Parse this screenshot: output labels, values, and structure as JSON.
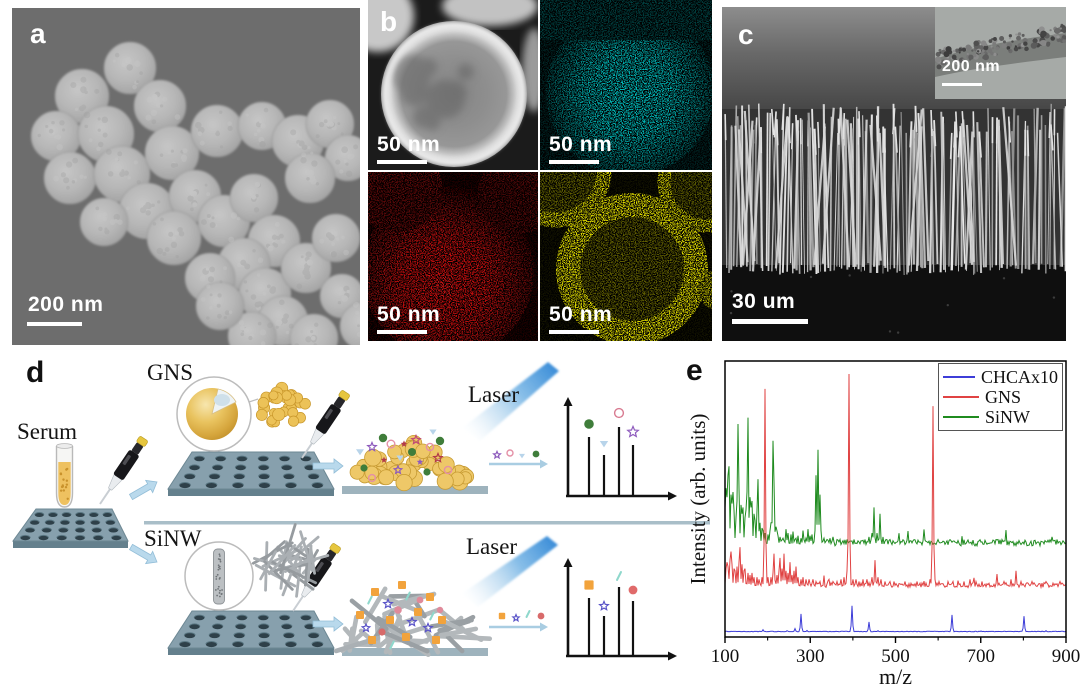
{
  "panels": {
    "a": {
      "label": "a",
      "scalebar_text": "200 nm"
    },
    "b": {
      "label": "b",
      "quadrants": [
        {
          "name": "stem-dark-field-image",
          "scalebar_text": "50 nm"
        },
        {
          "name": "elemental-map-cyan",
          "scalebar_text": "50 nm",
          "color": "#00bfbf"
        },
        {
          "name": "elemental-map-red",
          "scalebar_text": "50 nm",
          "color": "#d01212"
        },
        {
          "name": "elemental-map-yellow",
          "scalebar_text": "50 nm",
          "color": "#dcd800"
        }
      ]
    },
    "c": {
      "label": "c",
      "scalebar_text": "30 um",
      "inset": {
        "scalebar_text": "200 nm"
      }
    },
    "d": {
      "label": "d",
      "serum_label": "Serum",
      "gns_label": "GNS",
      "sinw_label": "SiNW",
      "laser_top_label": "Laser",
      "laser_bottom_label": "Laser"
    },
    "e": {
      "label": "e"
    }
  },
  "chart_data": {
    "type": "line",
    "title": "",
    "xlabel": "m/z",
    "ylabel": "Intensity (arb. units)",
    "xlim": [
      100,
      900
    ],
    "xticks_major": [
      100,
      300,
      500,
      700,
      900
    ],
    "xticks_minor": [
      200,
      400,
      600,
      800
    ],
    "grid": false,
    "legend_position": "top-right",
    "legend": [
      {
        "label": "CHCAx10",
        "color": "#3d3dd8"
      },
      {
        "label": "GNS",
        "color": "#e04343"
      },
      {
        "label": "SiNW",
        "color": "#1f8b1f"
      }
    ],
    "series": [
      {
        "name": "SiNW",
        "color": "#1f8b1f",
        "baseline_frac": 0.67,
        "amp_frac": 0.465,
        "noise_frac": 0.05,
        "spike_frac": 0.11,
        "seed": 11,
        "peaks": [
          [
            101,
            0.3
          ],
          [
            103,
            0.45
          ],
          [
            105,
            0.38
          ],
          [
            107,
            0.55
          ],
          [
            110,
            0.62
          ],
          [
            113,
            0.4
          ],
          [
            116,
            0.33
          ],
          [
            119,
            0.42
          ],
          [
            122,
            0.28
          ],
          [
            125,
            0.22
          ],
          [
            128,
            0.35
          ],
          [
            131,
            0.95
          ],
          [
            134,
            0.45
          ],
          [
            137,
            0.32
          ],
          [
            140,
            0.25
          ],
          [
            143,
            0.3
          ],
          [
            146,
            0.22
          ],
          [
            149,
            0.28
          ],
          [
            152,
            0.42
          ],
          [
            155,
            1.0
          ],
          [
            158,
            0.38
          ],
          [
            161,
            0.3
          ],
          [
            164,
            0.35
          ],
          [
            167,
            0.25
          ],
          [
            170,
            0.2
          ],
          [
            174,
            0.28
          ],
          [
            178,
            0.52
          ],
          [
            182,
            0.18
          ],
          [
            186,
            0.14
          ],
          [
            190,
            0.12
          ],
          [
            195,
            0.1
          ],
          [
            200,
            0.09
          ],
          [
            205,
            0.12
          ],
          [
            209,
            0.18
          ],
          [
            213,
            0.82
          ],
          [
            216,
            0.5
          ],
          [
            219,
            0.15
          ],
          [
            224,
            0.08
          ],
          [
            230,
            0.07
          ],
          [
            236,
            0.06
          ],
          [
            242,
            0.13
          ],
          [
            248,
            0.1
          ],
          [
            254,
            0.09
          ],
          [
            260,
            0.07
          ],
          [
            266,
            0.06
          ],
          [
            272,
            0.08
          ],
          [
            278,
            0.06
          ],
          [
            284,
            0.12
          ],
          [
            290,
            0.06
          ],
          [
            295,
            0.13
          ],
          [
            300,
            0.08
          ],
          [
            305,
            0.09
          ],
          [
            310,
            0.12
          ],
          [
            314,
            0.55
          ],
          [
            318,
            0.75
          ],
          [
            322,
            0.4
          ],
          [
            326,
            0.12
          ],
          [
            332,
            0.06
          ],
          [
            339,
            0.05
          ],
          [
            346,
            0.06
          ],
          [
            354,
            0.07
          ],
          [
            362,
            0.05
          ],
          [
            370,
            0.05
          ],
          [
            378,
            0.04
          ],
          [
            386,
            0.05
          ],
          [
            394,
            0.04
          ],
          [
            402,
            0.05
          ],
          [
            411,
            0.04
          ],
          [
            420,
            0.04
          ],
          [
            429,
            0.05
          ],
          [
            438,
            0.07
          ],
          [
            444,
            0.1
          ],
          [
            450,
            0.3
          ],
          [
            457,
            0.1
          ],
          [
            464,
            0.25
          ],
          [
            471,
            0.07
          ],
          [
            478,
            0.05
          ],
          [
            486,
            0.05
          ],
          [
            495,
            0.04
          ],
          [
            505,
            0.04
          ],
          [
            516,
            0.03
          ],
          [
            528,
            0.03
          ],
          [
            541,
            0.04
          ],
          [
            555,
            0.03
          ],
          [
            570,
            0.03
          ],
          [
            586,
            0.03
          ],
          [
            603,
            0.03
          ],
          [
            621,
            0.04
          ],
          [
            640,
            0.03
          ],
          [
            660,
            0.04
          ],
          [
            681,
            0.03
          ],
          [
            703,
            0.03
          ],
          [
            726,
            0.02
          ],
          [
            750,
            0.03
          ],
          [
            775,
            0.02
          ],
          [
            800,
            0.03
          ],
          [
            826,
            0.02
          ],
          [
            853,
            0.03
          ],
          [
            868,
            0.07
          ],
          [
            880,
            0.05
          ],
          [
            893,
            0.04
          ]
        ]
      },
      {
        "name": "GNS",
        "color": "#e04343",
        "baseline_frac": 0.822,
        "amp_frac": 0.775,
        "noise_frac": 0.025,
        "spike_frac": 0.05,
        "seed": 29,
        "peaks": [
          [
            102,
            0.09
          ],
          [
            105,
            0.12
          ],
          [
            108,
            0.1
          ],
          [
            111,
            0.13
          ],
          [
            114,
            0.17
          ],
          [
            117,
            0.11
          ],
          [
            120,
            0.09
          ],
          [
            124,
            0.08
          ],
          [
            128,
            0.1
          ],
          [
            132,
            0.12
          ],
          [
            136,
            0.19
          ],
          [
            140,
            0.11
          ],
          [
            144,
            0.08
          ],
          [
            148,
            0.09
          ],
          [
            153,
            0.07
          ],
          [
            158,
            0.06
          ],
          [
            163,
            0.07
          ],
          [
            168,
            0.05
          ],
          [
            174,
            0.05
          ],
          [
            180,
            0.04
          ],
          [
            186,
            0.05
          ],
          [
            191,
            0.08
          ],
          [
            194,
            0.93
          ],
          [
            197,
            0.1
          ],
          [
            202,
            0.05
          ],
          [
            207,
            0.05
          ],
          [
            212,
            0.07
          ],
          [
            216,
            0.16
          ],
          [
            221,
            0.06
          ],
          [
            226,
            0.08
          ],
          [
            230,
            0.14
          ],
          [
            234,
            0.09
          ],
          [
            238,
            0.16
          ],
          [
            242,
            0.08
          ],
          [
            247,
            0.07
          ],
          [
            252,
            0.12
          ],
          [
            257,
            0.06
          ],
          [
            262,
            0.08
          ],
          [
            267,
            0.1
          ],
          [
            272,
            0.05
          ],
          [
            278,
            0.04
          ],
          [
            284,
            0.05
          ],
          [
            291,
            0.04
          ],
          [
            298,
            0.04
          ],
          [
            306,
            0.04
          ],
          [
            314,
            0.03
          ],
          [
            323,
            0.03
          ],
          [
            333,
            0.03
          ],
          [
            343,
            0.04
          ],
          [
            353,
            0.03
          ],
          [
            363,
            0.03
          ],
          [
            372,
            0.04
          ],
          [
            380,
            0.05
          ],
          [
            387,
            0.08
          ],
          [
            390,
            1.0
          ],
          [
            394,
            0.07
          ],
          [
            400,
            0.04
          ],
          [
            407,
            0.04
          ],
          [
            415,
            0.03
          ],
          [
            424,
            0.04
          ],
          [
            434,
            0.04
          ],
          [
            444,
            0.05
          ],
          [
            452,
            0.13
          ],
          [
            459,
            0.05
          ],
          [
            467,
            0.04
          ],
          [
            476,
            0.03
          ],
          [
            486,
            0.03
          ],
          [
            497,
            0.03
          ],
          [
            509,
            0.02
          ],
          [
            522,
            0.03
          ],
          [
            536,
            0.02
          ],
          [
            551,
            0.03
          ],
          [
            566,
            0.02
          ],
          [
            580,
            0.04
          ],
          [
            587,
            0.85
          ],
          [
            593,
            0.04
          ],
          [
            601,
            0.03
          ],
          [
            611,
            0.02
          ],
          [
            622,
            0.03
          ],
          [
            634,
            0.03
          ],
          [
            647,
            0.02
          ],
          [
            660,
            0.03
          ],
          [
            674,
            0.04
          ],
          [
            688,
            0.03
          ],
          [
            703,
            0.03
          ],
          [
            719,
            0.02
          ],
          [
            736,
            0.02
          ],
          [
            754,
            0.03
          ],
          [
            772,
            0.04
          ],
          [
            783,
            0.08
          ],
          [
            794,
            0.03
          ],
          [
            807,
            0.02
          ],
          [
            821,
            0.03
          ],
          [
            836,
            0.02
          ],
          [
            852,
            0.03
          ],
          [
            869,
            0.02
          ],
          [
            887,
            0.03
          ]
        ]
      },
      {
        "name": "CHCAx10",
        "color": "#3d3dd8",
        "baseline_frac": 0.981,
        "amp_frac": 0.094,
        "noise_frac": 0.02,
        "spike_frac": 0.0,
        "seed": 47,
        "peaks": [
          [
            190,
            0.08
          ],
          [
            245,
            0.04
          ],
          [
            265,
            0.12
          ],
          [
            279,
            0.69
          ],
          [
            292,
            0.05
          ],
          [
            399,
            1.0
          ],
          [
            437,
            0.38
          ],
          [
            460,
            0.04
          ],
          [
            632,
            0.65
          ],
          [
            700,
            0.03
          ],
          [
            801,
            0.6
          ],
          [
            852,
            0.04
          ]
        ]
      }
    ]
  }
}
